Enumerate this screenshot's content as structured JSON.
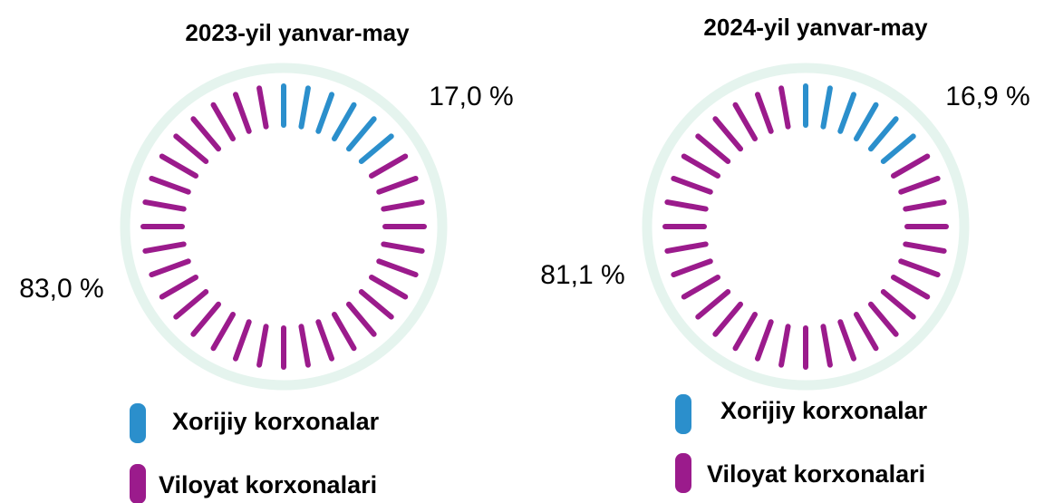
{
  "chart_data": [
    {
      "type": "pie",
      "title": "2023-yil yanvar-may",
      "categories": [
        "Xorijiy korxonalar",
        "Viloyat korxonalari"
      ],
      "values": [
        17.0,
        83.0
      ],
      "value_labels": [
        "17,0 %",
        "83,0 %"
      ],
      "colors": [
        "#2b8fcc",
        "#9b1b8c"
      ]
    },
    {
      "type": "pie",
      "title": "2024-yil yanvar-may",
      "categories": [
        "Xorijiy korxonalar",
        "Viloyat korxonalari"
      ],
      "values": [
        16.9,
        81.1
      ],
      "value_labels": [
        "16,9 %",
        "81,1 %"
      ],
      "colors": [
        "#2b8fcc",
        "#9b1b8c"
      ]
    }
  ]
}
